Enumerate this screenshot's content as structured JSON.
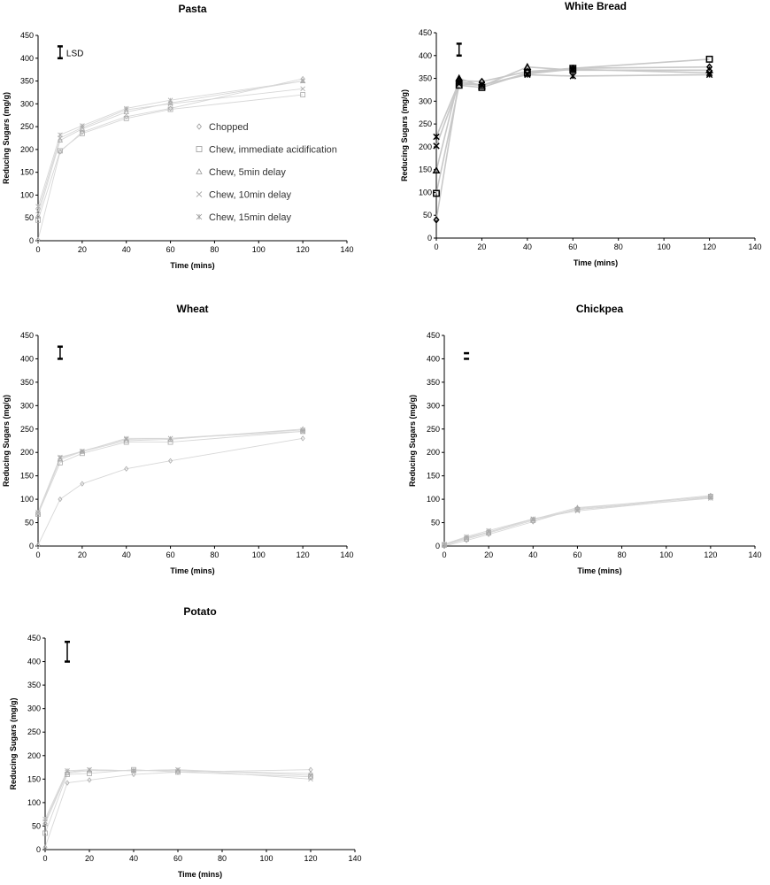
{
  "common": {
    "xlabel": "Time (mins)",
    "ylabel": "Reducing Sugars (mg/g)",
    "lsd_label": "LSD",
    "xlim": [
      0,
      140
    ],
    "ylim": [
      0,
      450
    ],
    "x_ticks": [
      "0",
      "20",
      "40",
      "60",
      "80",
      "100",
      "120",
      "140"
    ],
    "y_ticks": [
      "0",
      "50",
      "100",
      "150",
      "200",
      "250",
      "300",
      "350",
      "400",
      "450"
    ]
  },
  "legend": {
    "entries": [
      {
        "name": "Chopped",
        "marker": "diamond"
      },
      {
        "name": "Chew, immediate acidification",
        "marker": "square"
      },
      {
        "name": "Chew, 5min delay",
        "marker": "triangle"
      },
      {
        "name": "Chew, 10min delay",
        "marker": "x"
      },
      {
        "name": "Chew, 15min delay",
        "marker": "star"
      }
    ]
  },
  "chart_data": [
    {
      "type": "line",
      "title": "Pasta",
      "xlabel": "Time (mins)",
      "ylabel": "Reducing Sugars (mg/g)",
      "xlim": [
        0,
        140
      ],
      "ylim": [
        0,
        450
      ],
      "lsd": [
        400,
        426
      ],
      "style": "light",
      "x": [
        0,
        10,
        20,
        40,
        60,
        120
      ],
      "series": [
        {
          "name": "Chopped",
          "values": [
            2,
            195,
            238,
            272,
            290,
            355
          ]
        },
        {
          "name": "Chew, immediate acidification",
          "values": [
            45,
            197,
            235,
            268,
            288,
            320
          ]
        },
        {
          "name": "Chew, 5min delay",
          "values": [
            55,
            220,
            245,
            282,
            302,
            350
          ]
        },
        {
          "name": "Chew, 10min delay",
          "values": [
            65,
            225,
            248,
            287,
            300,
            333
          ]
        },
        {
          "name": "Chew, 15min delay",
          "values": [
            75,
            232,
            252,
            290,
            308,
            350
          ]
        }
      ]
    },
    {
      "type": "line",
      "title": "White Bread",
      "xlabel": "Time (mins)",
      "ylabel": "Reducing Sugars (mg/g)",
      "xlim": [
        0,
        140
      ],
      "ylim": [
        0,
        450
      ],
      "lsd": [
        400,
        426
      ],
      "style": "bold",
      "x": [
        0,
        10,
        20,
        40,
        60,
        120
      ],
      "series": [
        {
          "name": "Chopped",
          "values": [
            40,
            345,
            343,
            365,
            372,
            375
          ]
        },
        {
          "name": "Chew, immediate acidification",
          "values": [
            98,
            335,
            330,
            362,
            372,
            392
          ]
        },
        {
          "name": "Chew, 5min delay",
          "values": [
            148,
            350,
            333,
            375,
            368,
            368
          ]
        },
        {
          "name": "Chew, 10min delay",
          "values": [
            202,
            338,
            335,
            360,
            370,
            362
          ]
        },
        {
          "name": "Chew, 15min delay",
          "values": [
            222,
            342,
            336,
            358,
            355,
            358
          ]
        }
      ]
    },
    {
      "type": "line",
      "title": "Wheat",
      "xlabel": "Time (mins)",
      "ylabel": "Reducing Sugars (mg/g)",
      "xlim": [
        0,
        140
      ],
      "ylim": [
        0,
        450
      ],
      "lsd": [
        400,
        426
      ],
      "style": "light",
      "x": [
        0,
        10,
        20,
        40,
        60,
        120
      ],
      "series": [
        {
          "name": "Chopped",
          "values": [
            2,
            100,
            133,
            165,
            182,
            230
          ]
        },
        {
          "name": "Chew, immediate acidification",
          "values": [
            68,
            178,
            198,
            222,
            222,
            245
          ]
        },
        {
          "name": "Chew, 5min delay",
          "values": [
            70,
            185,
            202,
            225,
            228,
            250
          ]
        },
        {
          "name": "Chew, 10min delay",
          "values": [
            72,
            188,
            203,
            228,
            230,
            248
          ]
        },
        {
          "name": "Chew, 15min delay",
          "values": [
            72,
            190,
            202,
            230,
            230,
            245
          ]
        }
      ]
    },
    {
      "type": "line",
      "title": "Chickpea",
      "xlabel": "Time (mins)",
      "ylabel": "Reducing Sugars (mg/g)",
      "xlim": [
        0,
        140
      ],
      "ylim": [
        0,
        450
      ],
      "lsd": [
        400,
        412
      ],
      "style": "light",
      "x": [
        0,
        10,
        20,
        40,
        60,
        120
      ],
      "series": [
        {
          "name": "Chopped",
          "values": [
            0,
            12,
            25,
            52,
            80,
            108
          ]
        },
        {
          "name": "Chew, immediate acidification",
          "values": [
            2,
            15,
            28,
            55,
            78,
            106
          ]
        },
        {
          "name": "Chew, 5min delay",
          "values": [
            3,
            18,
            30,
            57,
            82,
            105
          ]
        },
        {
          "name": "Chew, 10min delay",
          "values": [
            3,
            17,
            30,
            58,
            75,
            104
          ]
        },
        {
          "name": "Chew, 15min delay",
          "values": [
            4,
            20,
            33,
            58,
            78,
            102
          ]
        }
      ]
    },
    {
      "type": "line",
      "title": "Potato",
      "xlabel": "Time (mins)",
      "ylabel": "Reducing Sugars (mg/g)",
      "xlim": [
        0,
        140
      ],
      "ylim": [
        0,
        450
      ],
      "lsd": [
        400,
        442
      ],
      "style": "light",
      "x": [
        0,
        10,
        20,
        40,
        60,
        120
      ],
      "series": [
        {
          "name": "Chopped",
          "values": [
            5,
            142,
            148,
            160,
            165,
            170
          ]
        },
        {
          "name": "Chew, immediate acidification",
          "values": [
            35,
            160,
            162,
            170,
            165,
            155
          ]
        },
        {
          "name": "Chew, 5min delay",
          "values": [
            55,
            163,
            168,
            168,
            168,
            162
          ]
        },
        {
          "name": "Chew, 10min delay",
          "values": [
            60,
            165,
            170,
            168,
            170,
            150
          ]
        },
        {
          "name": "Chew, 15min delay",
          "values": [
            65,
            168,
            170,
            168,
            170,
            158
          ]
        }
      ]
    }
  ]
}
